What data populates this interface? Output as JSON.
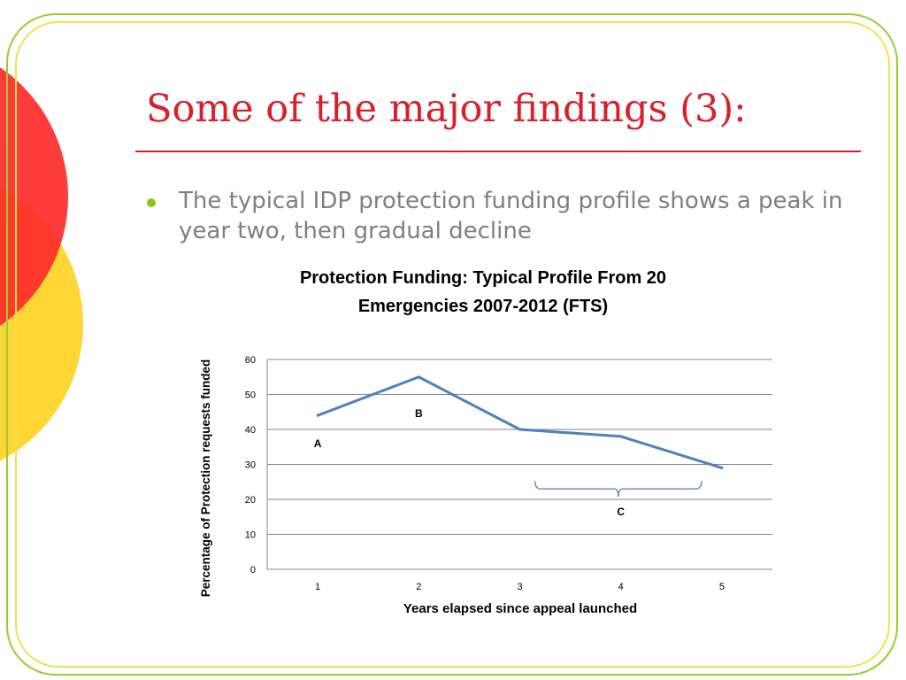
{
  "slide": {
    "title": "Some of the major findings (3):",
    "bullet": "The typical IDP protection funding profile shows a peak in year two, then gradual decline"
  },
  "colors": {
    "title": "#d8202a",
    "bullet_dot": "#8fc31f",
    "frame_green": "#9acd32",
    "frame_yellow": "#f5e04a",
    "circle_red": "#ff2b2b",
    "circle_yellow": "#ffd21f",
    "series_line": "#4f81bd"
  },
  "chart_data": {
    "type": "line",
    "title": "Protection Funding: Typical Profile From 20 Emergencies 2007-2012 (FTS)",
    "title_lines": [
      "Protection Funding: Typical Profile From 20",
      "Emergencies 2007-2012 (FTS)"
    ],
    "xlabel": "Years elapsed since appeal launched",
    "ylabel": "Percentage of Protection requests funded",
    "categories": [
      "1",
      "2",
      "3",
      "4",
      "5"
    ],
    "series": [
      {
        "values": [
          44,
          55,
          40,
          38,
          29
        ]
      }
    ],
    "ylim": [
      0,
      60
    ],
    "yticks": [
      0,
      10,
      20,
      30,
      40,
      50,
      60
    ],
    "grid": true,
    "legend": "none",
    "annotations": [
      {
        "text": "A",
        "x": 1,
        "y": 35
      },
      {
        "text": "B",
        "x": 2,
        "y": 43.5
      },
      {
        "text": "C",
        "x": 4,
        "y": 15.5
      }
    ],
    "bracket": {
      "x_from": 3.15,
      "x_to": 4.8,
      "y": 23,
      "label": "C"
    }
  }
}
